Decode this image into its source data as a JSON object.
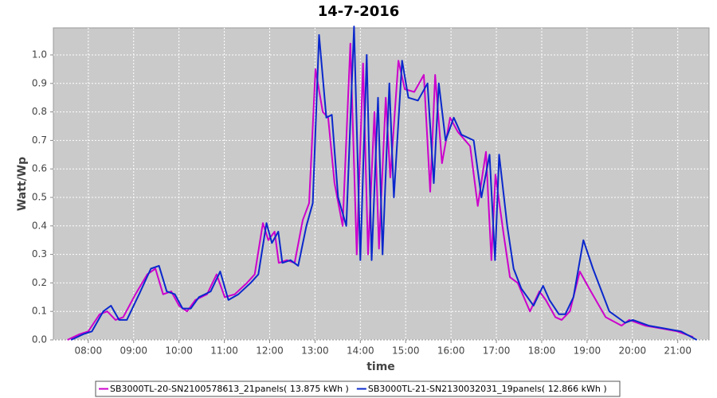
{
  "chart_data": {
    "type": "line",
    "title": "14-7-2016",
    "xlabel": "time",
    "ylabel": "Watt/Wp",
    "xlim": [
      7.23,
      21.69
    ],
    "ylim": [
      0,
      1.095
    ],
    "xticks": [
      {
        "value": 8,
        "label": "08:00"
      },
      {
        "value": 9,
        "label": "09:00"
      },
      {
        "value": 10,
        "label": "10:00"
      },
      {
        "value": 11,
        "label": "11:00"
      },
      {
        "value": 12,
        "label": "12:00"
      },
      {
        "value": 13,
        "label": "13:00"
      },
      {
        "value": 14,
        "label": "14:00"
      },
      {
        "value": 15,
        "label": "15:00"
      },
      {
        "value": 16,
        "label": "16:00"
      },
      {
        "value": 17,
        "label": "17:00"
      },
      {
        "value": 18,
        "label": "18:00"
      },
      {
        "value": 19,
        "label": "19:00"
      },
      {
        "value": 20,
        "label": "20:00"
      },
      {
        "value": 21,
        "label": "21:00"
      }
    ],
    "yticks": [
      {
        "value": 0,
        "label": "0.0"
      },
      0.1,
      0.2,
      0.3,
      0.4,
      0.5,
      0.6,
      0.7,
      0.8,
      0.9,
      {
        "value": 1,
        "label": "1.0"
      }
    ],
    "grid": true,
    "legend": "bottom",
    "series": [
      {
        "name": "SB3000TL-20-SN2100578613_21panels( 13.875 kWh )",
        "color": "#cc00cc",
        "x": [
          7.54,
          7.81,
          8.0,
          8.25,
          8.42,
          8.6,
          8.77,
          9.04,
          9.3,
          9.48,
          9.65,
          9.83,
          10.0,
          10.18,
          10.36,
          10.62,
          10.83,
          11.01,
          11.23,
          11.5,
          11.67,
          11.85,
          11.97,
          12.11,
          12.2,
          12.38,
          12.55,
          12.73,
          12.87,
          13.01,
          13.17,
          13.29,
          13.43,
          13.61,
          13.78,
          13.92,
          14.06,
          14.17,
          14.31,
          14.41,
          14.56,
          14.66,
          14.84,
          14.98,
          15.19,
          15.4,
          15.54,
          15.65,
          15.8,
          15.98,
          16.15,
          16.42,
          16.59,
          16.77,
          16.89,
          16.98,
          17.16,
          17.3,
          17.47,
          17.74,
          17.95,
          18.09,
          18.3,
          18.44,
          18.62,
          18.84,
          19.05,
          19.41,
          19.76,
          19.93,
          20.28,
          20.64,
          20.99,
          21.34
        ],
        "values": [
          0.0,
          0.02,
          0.03,
          0.09,
          0.1,
          0.07,
          0.08,
          0.16,
          0.23,
          0.25,
          0.16,
          0.17,
          0.12,
          0.1,
          0.14,
          0.16,
          0.23,
          0.15,
          0.16,
          0.2,
          0.23,
          0.41,
          0.35,
          0.38,
          0.27,
          0.28,
          0.27,
          0.42,
          0.48,
          0.95,
          0.8,
          0.78,
          0.55,
          0.4,
          1.04,
          0.3,
          0.97,
          0.3,
          0.8,
          0.32,
          0.85,
          0.57,
          0.98,
          0.88,
          0.87,
          0.93,
          0.52,
          0.93,
          0.62,
          0.78,
          0.73,
          0.68,
          0.47,
          0.66,
          0.28,
          0.58,
          0.37,
          0.22,
          0.2,
          0.1,
          0.17,
          0.14,
          0.08,
          0.07,
          0.1,
          0.24,
          0.18,
          0.08,
          0.05,
          0.07,
          0.05,
          0.04,
          0.03,
          0.01
        ]
      },
      {
        "name": "SB3000TL-21-SN2130032031_19panels( 12.866 kWh )",
        "color": "#0a28cc",
        "x": [
          7.62,
          7.89,
          8.08,
          8.33,
          8.5,
          8.68,
          8.85,
          9.12,
          9.38,
          9.56,
          9.73,
          9.91,
          10.08,
          10.26,
          10.44,
          10.7,
          10.91,
          11.09,
          11.31,
          11.58,
          11.75,
          11.93,
          12.05,
          12.19,
          12.28,
          12.46,
          12.63,
          12.81,
          12.95,
          13.09,
          13.25,
          13.37,
          13.51,
          13.69,
          13.86,
          14.0,
          14.14,
          14.25,
          14.39,
          14.49,
          14.64,
          14.74,
          14.92,
          15.06,
          15.27,
          15.48,
          15.62,
          15.73,
          15.88,
          16.06,
          16.23,
          16.5,
          16.67,
          16.85,
          16.97,
          17.06,
          17.24,
          17.38,
          17.55,
          17.82,
          18.03,
          18.17,
          18.38,
          18.52,
          18.7,
          18.92,
          19.13,
          19.49,
          19.84,
          20.01,
          20.36,
          20.72,
          21.07,
          21.42
        ],
        "values": [
          0.0,
          0.02,
          0.03,
          0.1,
          0.12,
          0.07,
          0.07,
          0.16,
          0.25,
          0.26,
          0.17,
          0.16,
          0.11,
          0.11,
          0.15,
          0.17,
          0.24,
          0.14,
          0.16,
          0.2,
          0.23,
          0.41,
          0.34,
          0.38,
          0.27,
          0.28,
          0.26,
          0.4,
          0.48,
          1.07,
          0.78,
          0.79,
          0.5,
          0.4,
          1.1,
          0.28,
          1.0,
          0.28,
          0.85,
          0.3,
          0.9,
          0.5,
          0.98,
          0.85,
          0.84,
          0.9,
          0.55,
          0.9,
          0.7,
          0.78,
          0.72,
          0.7,
          0.5,
          0.65,
          0.28,
          0.65,
          0.4,
          0.25,
          0.18,
          0.12,
          0.19,
          0.14,
          0.09,
          0.09,
          0.15,
          0.35,
          0.25,
          0.1,
          0.06,
          0.07,
          0.05,
          0.04,
          0.03,
          0.0
        ]
      }
    ]
  }
}
